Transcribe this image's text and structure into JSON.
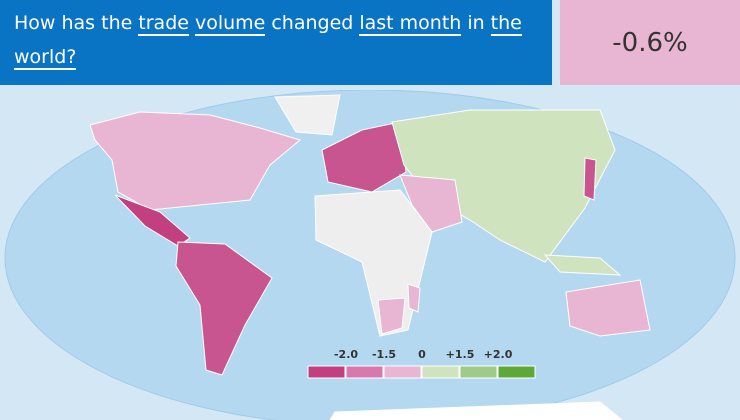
{
  "question": [
    {
      "text": "How has the",
      "option": false
    },
    {
      "text": "trade",
      "option": true
    },
    {
      "text": "volume",
      "option": true
    },
    {
      "text": "changed",
      "option": false
    },
    {
      "text": "last month",
      "option": true
    },
    {
      "text": "in",
      "option": false
    },
    {
      "text": "the world?",
      "option": true
    }
  ],
  "result": "-0.6%",
  "legend": {
    "labels": [
      "-2.0",
      "-1.5",
      "0",
      "+1.5",
      "+2.0"
    ],
    "colors": [
      "#c2407f",
      "#d879ae",
      "#e8b5d3",
      "#cfe3bf",
      "#9ecb87",
      "#5ca838"
    ]
  }
}
